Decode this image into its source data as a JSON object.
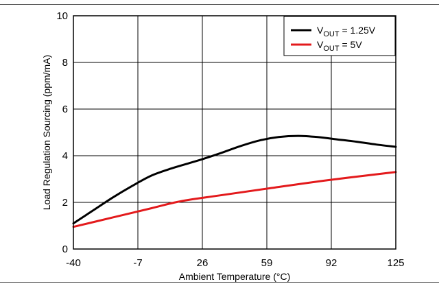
{
  "chart_data": {
    "type": "line",
    "xlabel": "Ambient Temperature (°C)",
    "ylabel": "Load Regulation Sourcing (ppm/mA)",
    "xlim": [
      -40,
      125
    ],
    "ylim": [
      0,
      10
    ],
    "x_ticks": [
      "-40",
      "-7",
      "26",
      "59",
      "92",
      "125"
    ],
    "y_ticks": [
      "0",
      "2",
      "4",
      "6",
      "8",
      "10"
    ],
    "grid": true,
    "legend_position": "top-right",
    "series": [
      {
        "name": "VOUT = 1.25V",
        "label_main": "V",
        "label_sub": "OUT",
        "label_rest": " = 1.25V",
        "color": "#000000",
        "x": [
          -40,
          -30,
          -20,
          -10,
          0,
          10,
          20,
          26,
          35,
          45,
          55,
          65,
          75,
          85,
          95,
          105,
          115,
          125
        ],
        "y": [
          1.1,
          1.65,
          2.2,
          2.7,
          3.15,
          3.45,
          3.7,
          3.85,
          4.1,
          4.4,
          4.65,
          4.8,
          4.85,
          4.8,
          4.7,
          4.6,
          4.48,
          4.38
        ]
      },
      {
        "name": "VOUT = 5V",
        "label_main": "V",
        "label_sub": "OUT",
        "label_rest": " = 5V",
        "color": "#e31a1c",
        "x": [
          -40,
          -20,
          0,
          15,
          35,
          60,
          90,
          125
        ],
        "y": [
          0.95,
          1.35,
          1.75,
          2.05,
          2.3,
          2.6,
          2.95,
          3.3
        ]
      }
    ]
  }
}
